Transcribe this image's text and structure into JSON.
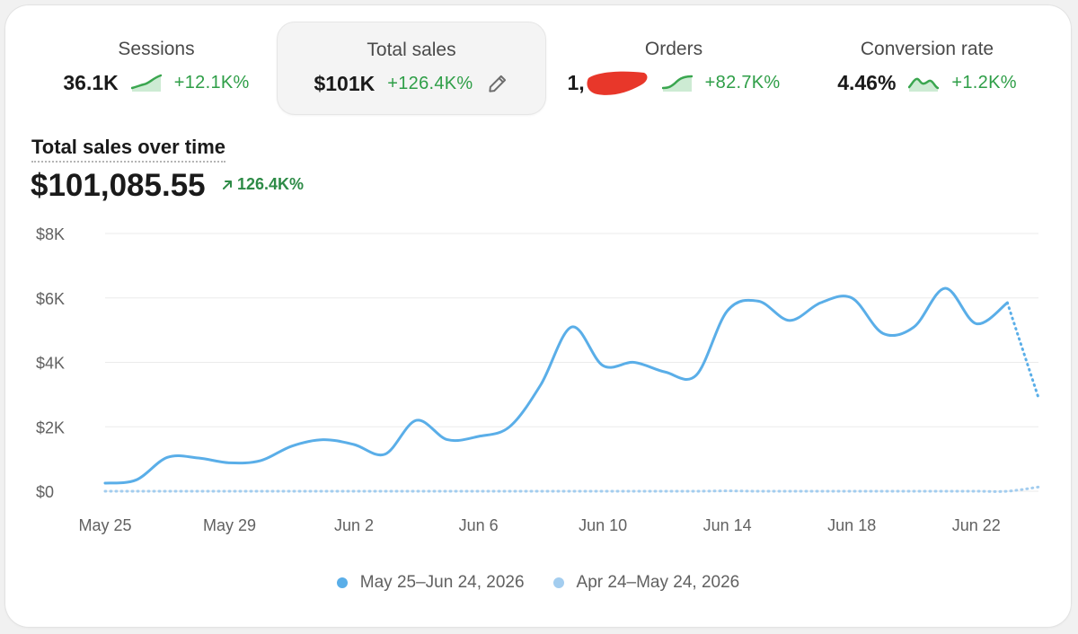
{
  "metrics": [
    {
      "title": "Sessions",
      "value": "36.1K",
      "change": "+12.1K%",
      "selected": false
    },
    {
      "title": "Total sales",
      "value": "$101K",
      "change": "+126.4K%",
      "selected": true
    },
    {
      "title": "Orders",
      "value": "1,",
      "change": "+82.7K%",
      "selected": false
    },
    {
      "title": "Conversion rate",
      "value": "4.46%",
      "change": "+1.2K%",
      "selected": false
    }
  ],
  "colors": {
    "accent_green": "#2e9e47",
    "series_current": "#5aaee8",
    "series_previous": "#a3cdef",
    "redaction": "#e8372a"
  },
  "chart_data": {
    "type": "line",
    "title": "Total sales over time",
    "total": "$101,085.55",
    "change": "126.4K%",
    "ylim": [
      0,
      8000
    ],
    "y_ticks": [
      {
        "value": 0,
        "label": "$0"
      },
      {
        "value": 2000,
        "label": "$2K"
      },
      {
        "value": 4000,
        "label": "$4K"
      },
      {
        "value": 6000,
        "label": "$6K"
      },
      {
        "value": 8000,
        "label": "$8K"
      }
    ],
    "x_ticks": [
      {
        "day": 0,
        "label": "May 25"
      },
      {
        "day": 4,
        "label": "May 29"
      },
      {
        "day": 8,
        "label": "Jun 2"
      },
      {
        "day": 12,
        "label": "Jun 6"
      },
      {
        "day": 16,
        "label": "Jun 10"
      },
      {
        "day": 20,
        "label": "Jun 14"
      },
      {
        "day": 24,
        "label": "Jun 18"
      },
      {
        "day": 28,
        "label": "Jun 22"
      }
    ],
    "grid": true,
    "legend_position": "bottom-center",
    "series": [
      {
        "name": "May 25–Jun 24, 2026",
        "x": [
          "May 25",
          "May 26",
          "May 27",
          "May 28",
          "May 29",
          "May 30",
          "May 31",
          "Jun 1",
          "Jun 2",
          "Jun 3",
          "Jun 4",
          "Jun 5",
          "Jun 6",
          "Jun 7",
          "Jun 8",
          "Jun 9",
          "Jun 10",
          "Jun 11",
          "Jun 12",
          "Jun 13",
          "Jun 14",
          "Jun 15",
          "Jun 16",
          "Jun 17",
          "Jun 18",
          "Jun 19",
          "Jun 20",
          "Jun 21",
          "Jun 22",
          "Jun 23",
          "Jun 24"
        ],
        "values": [
          250,
          350,
          1050,
          1030,
          880,
          950,
          1400,
          1600,
          1450,
          1150,
          2200,
          1600,
          1700,
          2000,
          3300,
          5100,
          3900,
          4000,
          3700,
          3600,
          5600,
          5900,
          5300,
          5850,
          6000,
          4900,
          5100,
          6300,
          5200,
          5850,
          2900
        ],
        "dotted_from_index": 29
      },
      {
        "name": "Apr 24–May 24, 2026",
        "values": [
          0,
          0,
          0,
          0,
          0,
          0,
          0,
          0,
          0,
          0,
          0,
          0,
          0,
          0,
          0,
          0,
          0,
          0,
          0,
          0,
          10,
          0,
          0,
          0,
          0,
          0,
          0,
          0,
          0,
          0,
          130
        ],
        "dotted": true
      }
    ]
  }
}
